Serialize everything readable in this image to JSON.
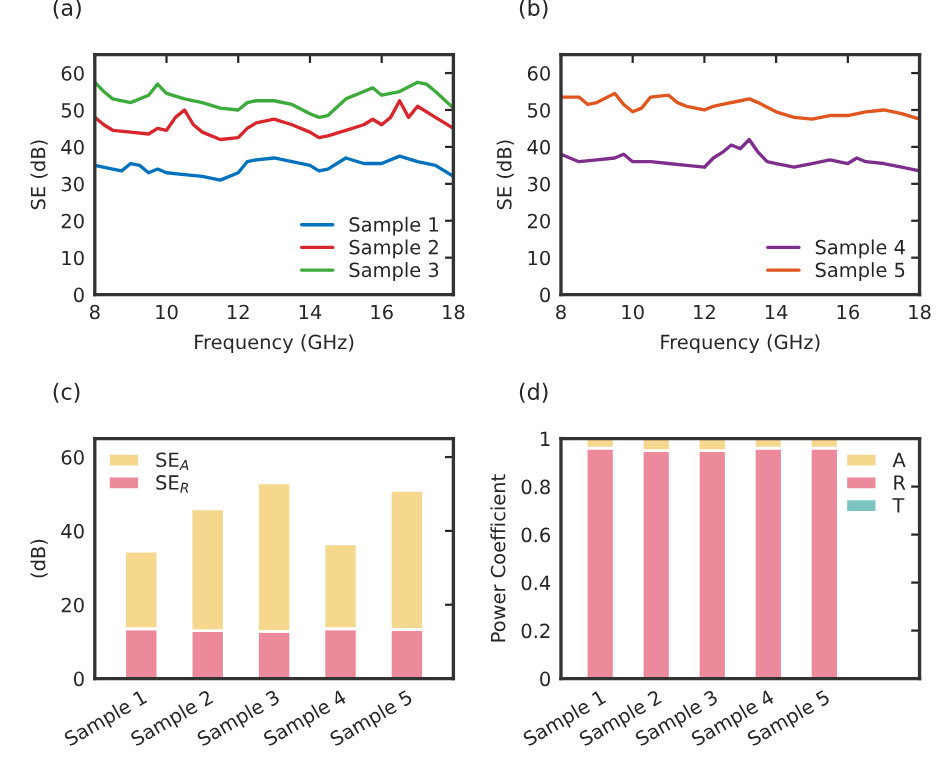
{
  "chart_data": [
    {
      "type": "line",
      "title": "(a)",
      "xlabel": "Frequency (GHz)",
      "ylabel": "SE (dB)",
      "xlim": [
        8,
        18
      ],
      "xticks": [
        8,
        10,
        12,
        14,
        16,
        18
      ],
      "ylim": [
        0,
        65
      ],
      "yticks": [
        0,
        10,
        20,
        30,
        40,
        50,
        60
      ],
      "legend": "bottom right",
      "grid": false,
      "series": [
        {
          "name": "Sample 1",
          "color": "#0072bd",
          "x": [
            8,
            8.5,
            8.75,
            9,
            9.25,
            9.5,
            9.75,
            10,
            10.5,
            11,
            11.5,
            12,
            12.25,
            12.5,
            13,
            13.5,
            14,
            14.25,
            14.5,
            15,
            15.5,
            16,
            16.5,
            17,
            17.5,
            18
          ],
          "values": [
            35,
            34,
            33.5,
            35.5,
            35,
            33,
            34,
            33,
            32.5,
            32,
            31,
            33,
            36,
            36.5,
            37,
            36,
            35,
            33.5,
            34,
            37,
            35.5,
            35.5,
            37.5,
            36,
            35,
            32
          ]
        },
        {
          "name": "Sample 2",
          "color": "#d9262d",
          "x": [
            8,
            8.25,
            8.5,
            9,
            9.5,
            9.75,
            10,
            10.25,
            10.5,
            10.75,
            11,
            11.5,
            12,
            12.25,
            12.5,
            13,
            13.5,
            14,
            14.25,
            14.5,
            15,
            15.5,
            15.75,
            16,
            16.25,
            16.5,
            16.75,
            17,
            17.5,
            18
          ],
          "values": [
            48,
            46,
            44.5,
            44,
            43.5,
            45,
            44.5,
            48,
            50,
            46,
            44,
            42,
            42.5,
            45,
            46.5,
            47.5,
            46,
            44,
            42.5,
            43,
            44.5,
            46,
            47.5,
            46,
            48,
            52.5,
            48,
            51,
            48,
            45
          ]
        },
        {
          "name": "Sample 3",
          "color": "#3cab3c",
          "x": [
            8,
            8.25,
            8.5,
            9,
            9.5,
            9.75,
            10,
            10.5,
            11,
            11.5,
            12,
            12.25,
            12.5,
            13,
            13.5,
            14,
            14.25,
            14.5,
            15,
            15.5,
            15.75,
            16,
            16.5,
            17,
            17.25,
            17.5,
            18
          ],
          "values": [
            57.5,
            55,
            53,
            52,
            54,
            57,
            54.5,
            53,
            52,
            50.5,
            50,
            52,
            52.5,
            52.5,
            51.5,
            49,
            48,
            48.5,
            53,
            55,
            56,
            54,
            55,
            57.5,
            57,
            55,
            50.5
          ]
        }
      ]
    },
    {
      "type": "line",
      "title": "(b)",
      "xlabel": "Frequency (GHz)",
      "ylabel": "SE (dB)",
      "xlim": [
        8,
        18
      ],
      "xticks": [
        8,
        10,
        12,
        14,
        16,
        18
      ],
      "ylim": [
        0,
        65
      ],
      "yticks": [
        0,
        10,
        20,
        30,
        40,
        50,
        60
      ],
      "legend": "bottom right",
      "grid": false,
      "series": [
        {
          "name": "Sample 4",
          "color": "#7e2f8e",
          "x": [
            8,
            8.5,
            9,
            9.5,
            9.75,
            10,
            10.5,
            11,
            11.5,
            12,
            12.25,
            12.5,
            12.75,
            13,
            13.25,
            13.5,
            13.75,
            14,
            14.5,
            15,
            15.5,
            16,
            16.25,
            16.5,
            17,
            17.5,
            18
          ],
          "values": [
            38,
            36,
            36.5,
            37,
            38,
            36,
            36,
            35.5,
            35,
            34.5,
            37,
            38.5,
            40.5,
            39.5,
            42,
            38.5,
            36,
            35.5,
            34.5,
            35.5,
            36.5,
            35.5,
            37,
            36,
            35.5,
            34.5,
            33.5
          ]
        },
        {
          "name": "Sample 5",
          "color": "#e0561f",
          "x": [
            8,
            8.5,
            8.75,
            9,
            9.5,
            9.75,
            10,
            10.25,
            10.5,
            11,
            11.25,
            11.5,
            12,
            12.25,
            12.5,
            13,
            13.25,
            13.5,
            14,
            14.5,
            15,
            15.5,
            16,
            16.5,
            17,
            17.5,
            18
          ],
          "values": [
            53.5,
            53.5,
            51.5,
            52,
            54.5,
            51.5,
            49.5,
            50.5,
            53.5,
            54,
            52,
            51,
            50,
            51,
            51.5,
            52.5,
            53,
            52,
            49.5,
            48,
            47.5,
            48.5,
            48.5,
            49.5,
            50,
            49,
            47.5
          ]
        }
      ]
    },
    {
      "type": "bar",
      "stacked": true,
      "title": "(c)",
      "ylabel": "(dB)",
      "ylim": [
        0,
        65
      ],
      "yticks": [
        0,
        20,
        40,
        60
      ],
      "legend": "top left",
      "grid": false,
      "categories": [
        "Sample 1",
        "Sample 2",
        "Sample 3",
        "Sample 4",
        "Sample 5"
      ],
      "series": [
        {
          "name": "SE$_{R}$",
          "color": "#ec8a9b",
          "values": [
            13.5,
            13,
            12.8,
            13.5,
            13.3
          ]
        },
        {
          "name": "SE$_{A}$",
          "color": "#f5d78e",
          "values": [
            21,
            33,
            40.2,
            23,
            37.7
          ]
        }
      ]
    },
    {
      "type": "bar",
      "stacked": true,
      "title": "(d)",
      "ylabel": "Power Coefficient",
      "ylim": [
        0,
        1
      ],
      "yticks": [
        0,
        0.2,
        0.4,
        0.6,
        0.8,
        1
      ],
      "legend": "top right",
      "grid": false,
      "categories": [
        "Sample 1",
        "Sample 2",
        "Sample 3",
        "Sample 4",
        "Sample 5"
      ],
      "series": [
        {
          "name": "T",
          "color": "#7cc4c0",
          "values": [
            0,
            0,
            0,
            0,
            0
          ]
        },
        {
          "name": "R",
          "color": "#ec8a9b",
          "values": [
            0.96,
            0.95,
            0.95,
            0.96,
            0.96
          ]
        },
        {
          "name": "A",
          "color": "#f5d78e",
          "values": [
            0.04,
            0.05,
            0.05,
            0.04,
            0.04
          ]
        }
      ]
    }
  ]
}
